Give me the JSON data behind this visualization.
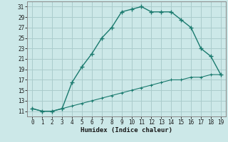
{
  "xlabel": "Humidex (Indice chaleur)",
  "x_upper": [
    0,
    1,
    2,
    3,
    4,
    5,
    6,
    7,
    8,
    9,
    10,
    11,
    12,
    13,
    14,
    15,
    16,
    17,
    18,
    19
  ],
  "y_upper": [
    11.5,
    11.0,
    11.0,
    11.5,
    16.5,
    19.5,
    22.0,
    25.0,
    27.0,
    30.0,
    30.5,
    31.0,
    30.0,
    30.0,
    30.0,
    28.5,
    27.0,
    23.0,
    21.5,
    18.0
  ],
  "x_lower": [
    0,
    1,
    2,
    3,
    4,
    5,
    6,
    7,
    8,
    9,
    10,
    11,
    12,
    13,
    14,
    15,
    16,
    17,
    18,
    19
  ],
  "y_lower": [
    11.5,
    11.0,
    11.0,
    11.5,
    12.0,
    12.5,
    13.0,
    13.5,
    14.0,
    14.5,
    15.0,
    15.5,
    16.0,
    16.5,
    17.0,
    17.0,
    17.5,
    17.5,
    18.0,
    18.0
  ],
  "line_color": "#1a7a6e",
  "bg_color": "#cce8e8",
  "grid_color": "#aacccc",
  "ylim": [
    10,
    32
  ],
  "yticks": [
    11,
    13,
    15,
    17,
    19,
    21,
    23,
    25,
    27,
    29,
    31
  ],
  "xlim": [
    -0.5,
    19.5
  ],
  "xticks": [
    0,
    1,
    2,
    3,
    4,
    5,
    6,
    7,
    8,
    9,
    10,
    11,
    12,
    13,
    14,
    15,
    16,
    17,
    18,
    19
  ]
}
